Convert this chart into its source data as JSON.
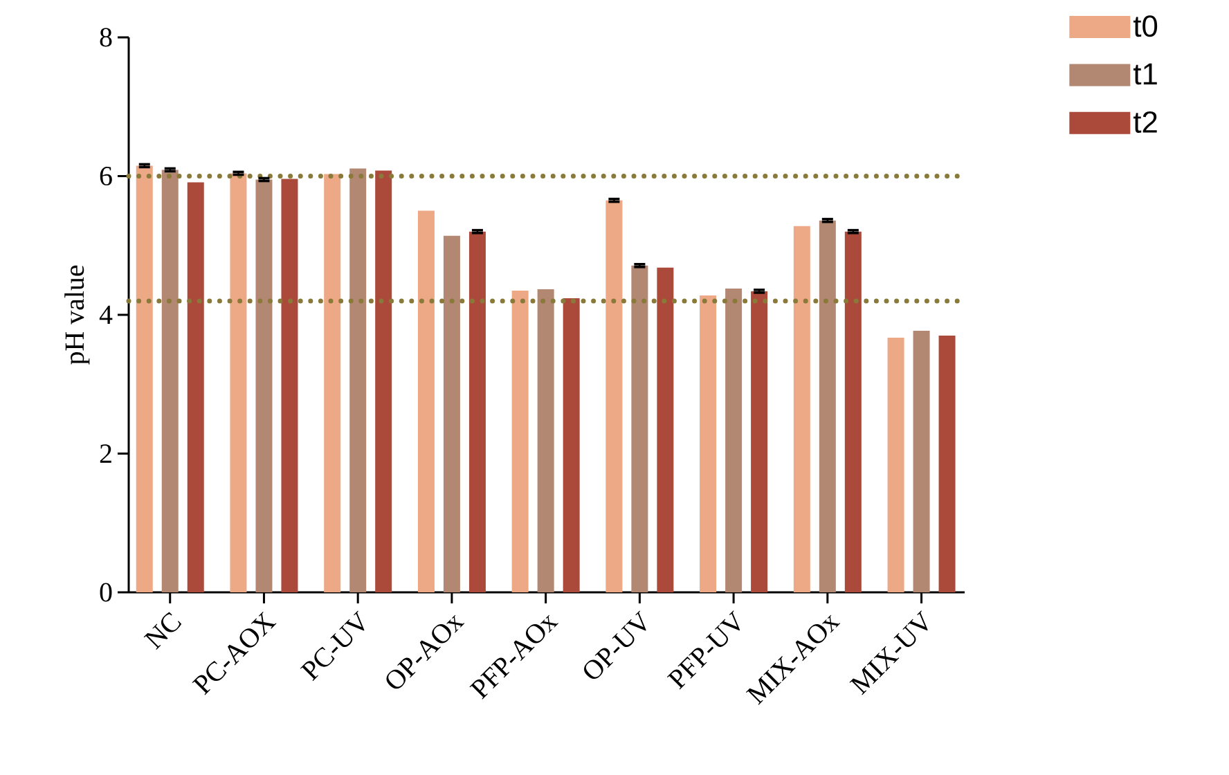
{
  "chart_data": {
    "type": "bar",
    "ylabel": "pH value",
    "categories": [
      "NC",
      "PC-AOX",
      "PC-UV",
      "OP-AOx",
      "PFP-AOx",
      "OP-UV",
      "PFP-UV",
      "MIX-AOx",
      "MIX-UV"
    ],
    "series": [
      {
        "name": "t0",
        "color": "#eda886",
        "values": [
          6.15,
          6.04,
          6.03,
          5.5,
          4.35,
          5.65,
          4.28,
          5.28,
          3.67
        ],
        "errors": [
          0.02,
          0.02,
          null,
          null,
          null,
          0.02,
          null,
          null,
          null
        ]
      },
      {
        "name": "t1",
        "color": "#b38872",
        "values": [
          6.09,
          5.95,
          6.11,
          5.14,
          4.37,
          4.71,
          4.38,
          5.36,
          3.77
        ],
        "errors": [
          0.02,
          0.02,
          null,
          null,
          null,
          0.02,
          null,
          0.02,
          null
        ]
      },
      {
        "name": "t2",
        "color": "#ab4a3a",
        "values": [
          5.91,
          5.96,
          6.08,
          5.2,
          4.24,
          4.68,
          4.34,
          5.2,
          3.7
        ],
        "errors": [
          null,
          null,
          null,
          0.02,
          null,
          null,
          0.02,
          0.02,
          null
        ]
      }
    ],
    "ylim": [
      0,
      8
    ],
    "yticks": [
      0,
      2,
      4,
      6,
      8
    ],
    "ref_lines": [
      {
        "axis": "y",
        "value": 6,
        "color": "#8a7a3a",
        "line_style": "dotted"
      },
      {
        "axis": "y",
        "value": 4.2,
        "color": "#8a7a3a",
        "line_style": "dotted"
      }
    ],
    "legend": "top right",
    "grid": false
  }
}
